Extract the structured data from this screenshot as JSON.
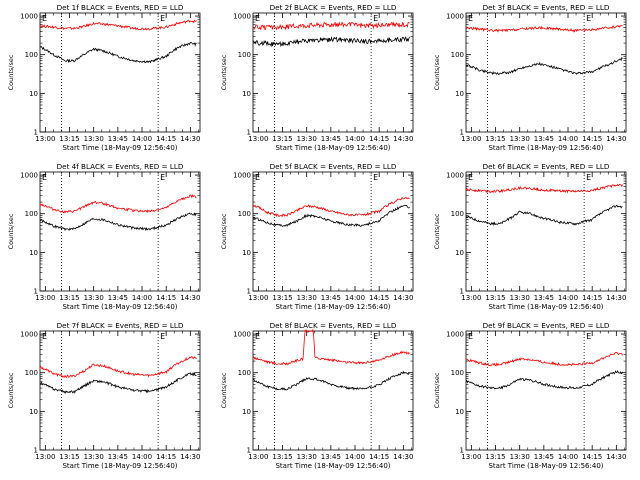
{
  "colors": {
    "background": "#ffffff",
    "axes": "#000000",
    "events": "#000000",
    "lld": "#ff0000"
  },
  "chart_data": [
    {
      "type": "line",
      "title": "Det 1f BLACK = Events, RED = LLD",
      "xlabel": "Start Time (18-May-09 12:56:40)",
      "ylabel": "Counts/sec",
      "xticks": [
        "13:00",
        "13:15",
        "13:30",
        "13:45",
        "14:00",
        "14:15",
        "14:30"
      ],
      "xlim": [
        "12:56:40",
        "14:36:00"
      ],
      "yscale": "log",
      "ylim": [
        1,
        1200
      ],
      "yticks": [
        1,
        10,
        100,
        1000
      ],
      "markers": [
        {
          "x": "13:10",
          "label": "E"
        },
        {
          "x": "14:10",
          "label": "E"
        }
      ],
      "series": [
        {
          "name": "BLACK = Events",
          "color": "#000000",
          "x": [
            "12:56:40",
            "13:05",
            "13:12",
            "13:18",
            "13:24",
            "13:30",
            "13:36",
            "13:45",
            "13:55",
            "14:05",
            "14:15",
            "14:22",
            "14:30",
            "14:34"
          ],
          "y": [
            160,
            100,
            70,
            70,
            100,
            140,
            125,
            90,
            70,
            65,
            90,
            150,
            200,
            185
          ]
        },
        {
          "name": "RED = LLD",
          "color": "#ff0000",
          "x": [
            "12:56:40",
            "13:05",
            "13:12",
            "13:18",
            "13:24",
            "13:30",
            "13:36",
            "13:45",
            "13:55",
            "14:05",
            "14:15",
            "14:22",
            "14:30",
            "14:34"
          ],
          "y": [
            560,
            520,
            480,
            480,
            540,
            640,
            620,
            560,
            480,
            470,
            520,
            640,
            760,
            720
          ]
        }
      ]
    },
    {
      "type": "line",
      "title": "Det 2f BLACK = Events, RED = LLD",
      "xlabel": "Start Time (18-May-09 12:56:40)",
      "ylabel": "Counts/sec",
      "xticks": [
        "13:00",
        "13:15",
        "13:30",
        "13:45",
        "14:00",
        "14:15",
        "14:30"
      ],
      "xlim": [
        "12:56:40",
        "14:36:00"
      ],
      "yscale": "log",
      "ylim": [
        1,
        1200
      ],
      "yticks": [
        1,
        10,
        100,
        1000
      ],
      "markers": [
        {
          "x": "13:10",
          "label": "E"
        },
        {
          "x": "14:10",
          "label": "E"
        }
      ],
      "series": [
        {
          "name": "BLACK = Events",
          "color": "#000000",
          "x": [
            "12:56:40",
            "13:10",
            "13:20",
            "13:30",
            "13:40",
            "13:50",
            "14:00",
            "14:10",
            "14:20",
            "14:34"
          ],
          "y": [
            210,
            190,
            200,
            230,
            240,
            250,
            230,
            220,
            240,
            260
          ]
        },
        {
          "name": "RED = LLD",
          "color": "#ff0000",
          "x": [
            "12:56:40",
            "13:10",
            "13:20",
            "13:30",
            "13:40",
            "13:50",
            "14:00",
            "14:10",
            "14:20",
            "14:34"
          ],
          "y": [
            520,
            500,
            540,
            580,
            600,
            620,
            590,
            560,
            600,
            620
          ]
        }
      ]
    },
    {
      "type": "line",
      "title": "Det 3f BLACK = Events, RED = LLD",
      "xlabel": "Start Time (18-May-09 12:56:40)",
      "ylabel": "Counts/sec",
      "xticks": [
        "13:00",
        "13:15",
        "13:30",
        "13:45",
        "14:00",
        "14:15",
        "14:30"
      ],
      "xlim": [
        "12:56:40",
        "14:36:00"
      ],
      "yscale": "log",
      "ylim": [
        1,
        1200
      ],
      "yticks": [
        1,
        10,
        100,
        1000
      ],
      "markers": [
        {
          "x": "13:10",
          "label": "E"
        },
        {
          "x": "14:10",
          "label": "E"
        }
      ],
      "series": [
        {
          "name": "BLACK = Events",
          "color": "#000000",
          "x": [
            "12:56:40",
            "13:05",
            "13:15",
            "13:24",
            "13:33",
            "13:42",
            "13:55",
            "14:05",
            "14:15",
            "14:25",
            "14:34"
          ],
          "y": [
            55,
            40,
            32,
            35,
            48,
            58,
            42,
            32,
            36,
            55,
            80
          ]
        },
        {
          "name": "RED = LLD",
          "color": "#ff0000",
          "x": [
            "12:56:40",
            "13:05",
            "13:15",
            "13:24",
            "13:33",
            "13:42",
            "13:55",
            "14:05",
            "14:15",
            "14:25",
            "14:34"
          ],
          "y": [
            500,
            460,
            420,
            430,
            470,
            500,
            460,
            420,
            440,
            500,
            560
          ]
        }
      ]
    },
    {
      "type": "line",
      "title": "Det 4f BLACK = Events, RED = LLD",
      "xlabel": "Start Time (18-May-09 12:56:40)",
      "ylabel": "Counts/sec",
      "xticks": [
        "13:00",
        "13:15",
        "13:30",
        "13:45",
        "14:00",
        "14:15",
        "14:30"
      ],
      "xlim": [
        "12:56:40",
        "14:36:00"
      ],
      "yscale": "log",
      "ylim": [
        1,
        1200
      ],
      "yticks": [
        1,
        10,
        100,
        1000
      ],
      "markers": [
        {
          "x": "13:10",
          "label": "E"
        },
        {
          "x": "14:10",
          "label": "E"
        }
      ],
      "series": [
        {
          "name": "BLACK = Events",
          "color": "#000000",
          "x": [
            "12:56:40",
            "13:05",
            "13:12",
            "13:18",
            "13:24",
            "13:30",
            "13:36",
            "13:45",
            "13:55",
            "14:05",
            "14:15",
            "14:22",
            "14:30",
            "14:34"
          ],
          "y": [
            70,
            48,
            40,
            40,
            55,
            75,
            70,
            52,
            42,
            40,
            50,
            75,
            100,
            95
          ]
        },
        {
          "name": "RED = LLD",
          "color": "#ff0000",
          "x": [
            "12:56:40",
            "13:05",
            "13:12",
            "13:18",
            "13:24",
            "13:30",
            "13:36",
            "13:45",
            "13:55",
            "14:05",
            "14:15",
            "14:22",
            "14:30",
            "14:34"
          ],
          "y": [
            180,
            130,
            110,
            115,
            150,
            200,
            185,
            140,
            120,
            115,
            140,
            210,
            290,
            270
          ]
        }
      ]
    },
    {
      "type": "line",
      "title": "Det 5f BLACK = Events, RED = LLD",
      "xlabel": "Start Time (18-May-09 12:56:40)",
      "ylabel": "Counts/sec",
      "xticks": [
        "13:00",
        "13:15",
        "13:30",
        "13:45",
        "14:00",
        "14:15",
        "14:30"
      ],
      "xlim": [
        "12:56:40",
        "14:36:00"
      ],
      "yscale": "log",
      "ylim": [
        1,
        1200
      ],
      "yticks": [
        1,
        10,
        100,
        1000
      ],
      "markers": [
        {
          "x": "13:10",
          "label": "E"
        },
        {
          "x": "14:10",
          "label": "E"
        }
      ],
      "series": [
        {
          "name": "BLACK = Events",
          "color": "#000000",
          "x": [
            "12:56:40",
            "13:05",
            "13:12",
            "13:18",
            "13:24",
            "13:30",
            "13:36",
            "13:45",
            "13:55",
            "14:05",
            "14:15",
            "14:22",
            "14:30",
            "14:34"
          ],
          "y": [
            80,
            60,
            50,
            50,
            65,
            90,
            85,
            65,
            52,
            50,
            65,
            110,
            160,
            150
          ]
        },
        {
          "name": "RED = LLD",
          "color": "#ff0000",
          "x": [
            "12:56:40",
            "13:05",
            "13:12",
            "13:18",
            "13:24",
            "13:30",
            "13:36",
            "13:45",
            "13:55",
            "14:05",
            "14:15",
            "14:22",
            "14:30",
            "14:34"
          ],
          "y": [
            170,
            110,
            90,
            92,
            120,
            160,
            150,
            115,
            95,
            92,
            115,
            180,
            260,
            245
          ]
        }
      ]
    },
    {
      "type": "line",
      "title": "Det 6f BLACK = Events, RED = LLD",
      "xlabel": "Start Time (18-May-09 12:56:40)",
      "ylabel": "Counts/sec",
      "xticks": [
        "13:00",
        "13:15",
        "13:30",
        "13:45",
        "14:00",
        "14:15",
        "14:30"
      ],
      "xlim": [
        "12:56:40",
        "14:36:00"
      ],
      "yscale": "log",
      "ylim": [
        1,
        1200
      ],
      "yticks": [
        1,
        10,
        100,
        1000
      ],
      "markers": [
        {
          "x": "13:10",
          "label": "E"
        },
        {
          "x": "14:10",
          "label": "E"
        }
      ],
      "series": [
        {
          "name": "BLACK = Events",
          "color": "#000000",
          "x": [
            "12:56:40",
            "13:05",
            "13:12",
            "13:18",
            "13:24",
            "13:30",
            "13:36",
            "13:45",
            "13:55",
            "14:05",
            "14:15",
            "14:22",
            "14:30",
            "14:34"
          ],
          "y": [
            85,
            65,
            55,
            55,
            75,
            110,
            100,
            75,
            60,
            55,
            70,
            110,
            160,
            150
          ]
        },
        {
          "name": "RED = LLD",
          "color": "#ff0000",
          "x": [
            "12:56:40",
            "13:05",
            "13:12",
            "13:18",
            "13:24",
            "13:30",
            "13:36",
            "13:45",
            "13:55",
            "14:05",
            "14:15",
            "14:22",
            "14:30",
            "14:34"
          ],
          "y": [
            420,
            400,
            380,
            385,
            420,
            470,
            450,
            410,
            390,
            380,
            400,
            470,
            560,
            540
          ]
        }
      ]
    },
    {
      "type": "line",
      "title": "Det 7f BLACK = Events, RED = LLD",
      "xlabel": "Start Time (18-May-09 12:56:40)",
      "ylabel": "Counts/sec",
      "xticks": [
        "13:00",
        "13:15",
        "13:30",
        "13:45",
        "14:00",
        "14:15",
        "14:30"
      ],
      "xlim": [
        "12:56:40",
        "14:36:00"
      ],
      "yscale": "log",
      "ylim": [
        1,
        1200
      ],
      "yticks": [
        1,
        10,
        100,
        1000
      ],
      "markers": [
        {
          "x": "13:10",
          "label": "E"
        },
        {
          "x": "14:10",
          "label": "E"
        }
      ],
      "series": [
        {
          "name": "BLACK = Events",
          "color": "#000000",
          "x": [
            "12:56:40",
            "13:05",
            "13:12",
            "13:18",
            "13:24",
            "13:30",
            "13:36",
            "13:45",
            "13:55",
            "14:05",
            "14:15",
            "14:22",
            "14:30",
            "14:34"
          ],
          "y": [
            55,
            38,
            32,
            32,
            45,
            62,
            58,
            43,
            35,
            33,
            42,
            65,
            95,
            90
          ]
        },
        {
          "name": "RED = LLD",
          "color": "#ff0000",
          "x": [
            "12:56:40",
            "13:05",
            "13:12",
            "13:18",
            "13:24",
            "13:30",
            "13:36",
            "13:45",
            "13:55",
            "14:05",
            "14:15",
            "14:22",
            "14:30",
            "14:34"
          ],
          "y": [
            140,
            95,
            80,
            82,
            110,
            160,
            150,
            110,
            90,
            85,
            105,
            170,
            250,
            235
          ]
        }
      ]
    },
    {
      "type": "line",
      "title": "Det 8f BLACK = Events, RED = LLD",
      "xlabel": "Start Time (18-May-09 12:56:40)",
      "ylabel": "Counts/sec",
      "xticks": [
        "13:00",
        "13:15",
        "13:30",
        "13:45",
        "14:00",
        "14:15",
        "14:30"
      ],
      "xlim": [
        "12:56:40",
        "14:36:00"
      ],
      "yscale": "log",
      "ylim": [
        1,
        1200
      ],
      "yticks": [
        1,
        10,
        100,
        1000
      ],
      "markers": [
        {
          "x": "13:10",
          "label": "E"
        },
        {
          "x": "14:10",
          "label": "E"
        }
      ],
      "series": [
        {
          "name": "BLACK = Events",
          "color": "#000000",
          "x": [
            "12:56:40",
            "13:05",
            "13:12",
            "13:18",
            "13:24",
            "13:30",
            "13:36",
            "13:45",
            "13:55",
            "14:05",
            "14:15",
            "14:22",
            "14:30",
            "14:34"
          ],
          "y": [
            65,
            45,
            38,
            38,
            50,
            72,
            68,
            50,
            40,
            38,
            48,
            72,
            100,
            95
          ]
        },
        {
          "name": "RED = LLD",
          "color": "#ff0000",
          "x": [
            "12:56:40",
            "13:05",
            "13:12",
            "13:18",
            "13:24",
            "13:28",
            "13:29",
            "13:34",
            "13:35",
            "13:45",
            "13:55",
            "14:05",
            "14:15",
            "14:22",
            "14:30",
            "14:34"
          ],
          "y": [
            250,
            195,
            170,
            172,
            205,
            230,
            1200,
            1200,
            245,
            215,
            185,
            180,
            210,
            275,
            340,
            320
          ]
        }
      ]
    },
    {
      "type": "line",
      "title": "Det 9f BLACK = Events, RED = LLD",
      "xlabel": "Start Time (18-May-09 12:56:40)",
      "ylabel": "Counts/sec",
      "xticks": [
        "13:00",
        "13:15",
        "13:30",
        "13:45",
        "14:00",
        "14:15",
        "14:30"
      ],
      "xlim": [
        "12:56:40",
        "14:36:00"
      ],
      "yscale": "log",
      "ylim": [
        1,
        1200
      ],
      "yticks": [
        1,
        10,
        100,
        1000
      ],
      "markers": [
        {
          "x": "13:10",
          "label": "E"
        },
        {
          "x": "14:10",
          "label": "E"
        }
      ],
      "series": [
        {
          "name": "BLACK = Events",
          "color": "#000000",
          "x": [
            "12:56:40",
            "13:05",
            "13:12",
            "13:18",
            "13:24",
            "13:30",
            "13:36",
            "13:45",
            "13:55",
            "14:05",
            "14:15",
            "14:22",
            "14:30",
            "14:34"
          ],
          "y": [
            60,
            45,
            40,
            40,
            50,
            68,
            65,
            50,
            42,
            40,
            50,
            75,
            105,
            100
          ]
        },
        {
          "name": "RED = LLD",
          "color": "#ff0000",
          "x": [
            "12:56:40",
            "13:05",
            "13:12",
            "13:18",
            "13:24",
            "13:30",
            "13:36",
            "13:45",
            "13:55",
            "14:05",
            "14:15",
            "14:22",
            "14:30",
            "14:34"
          ],
          "y": [
            220,
            180,
            160,
            162,
            190,
            230,
            220,
            185,
            165,
            160,
            180,
            240,
            320,
            300
          ]
        }
      ]
    }
  ]
}
